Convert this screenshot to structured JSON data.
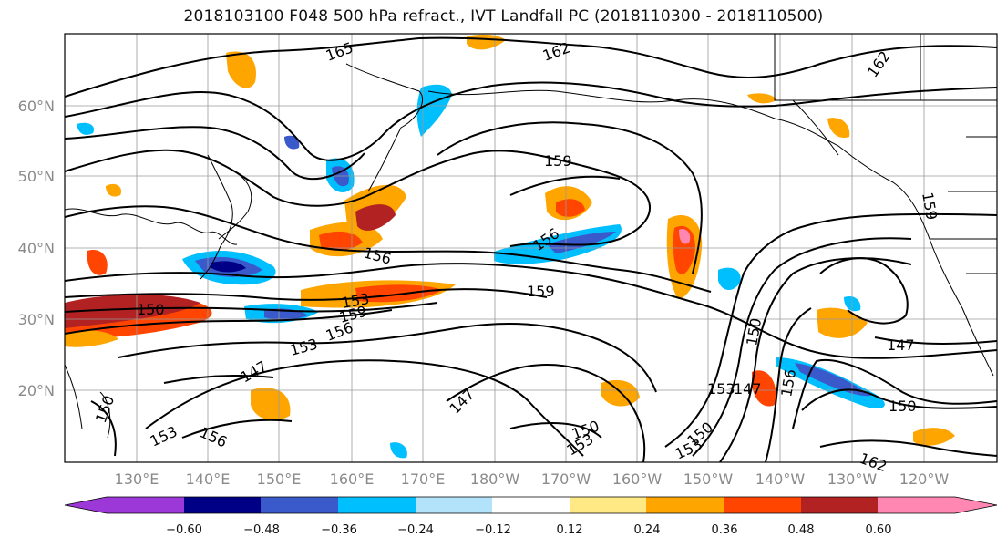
{
  "title": "2018103100 F048 500 hPa refract., IVT Landfall PC (2018110300 - 2018110500)",
  "lat_labels": [
    "60°N",
    "50°N",
    "40°N",
    "30°N",
    "20°N"
  ],
  "lon_labels": [
    "130°E",
    "140°E",
    "150°E",
    "160°E",
    "170°E",
    "180°W",
    "170°W",
    "160°W",
    "150°W",
    "140°W",
    "130°W",
    "120°W"
  ],
  "colorbar": {
    "colors": [
      "#9c37d8",
      "#000087",
      "#3a59cb",
      "#00bfff",
      "#b3e2fb",
      "#ffffff",
      "#ffe985",
      "#ffa500",
      "#ff4500",
      "#b22222",
      "#ff87b2"
    ],
    "tick_labels": [
      "−0.60",
      "−0.48",
      "−0.36",
      "−0.24",
      "−0.12",
      "0.12",
      "0.24",
      "0.36",
      "0.48",
      "0.60"
    ]
  },
  "contour_labels": [
    "165",
    "162",
    "162",
    "159",
    "159",
    "156",
    "156",
    "156",
    "156",
    "153",
    "153",
    "153",
    "153",
    "153",
    "153",
    "150",
    "150",
    "150",
    "150",
    "150",
    "147",
    "147",
    "147",
    "147",
    "156",
    "162",
    "159",
    "159",
    "150"
  ],
  "colors": {
    "contour": "#000000",
    "coastline": "#000000",
    "grid": "#9a9a9a"
  }
}
